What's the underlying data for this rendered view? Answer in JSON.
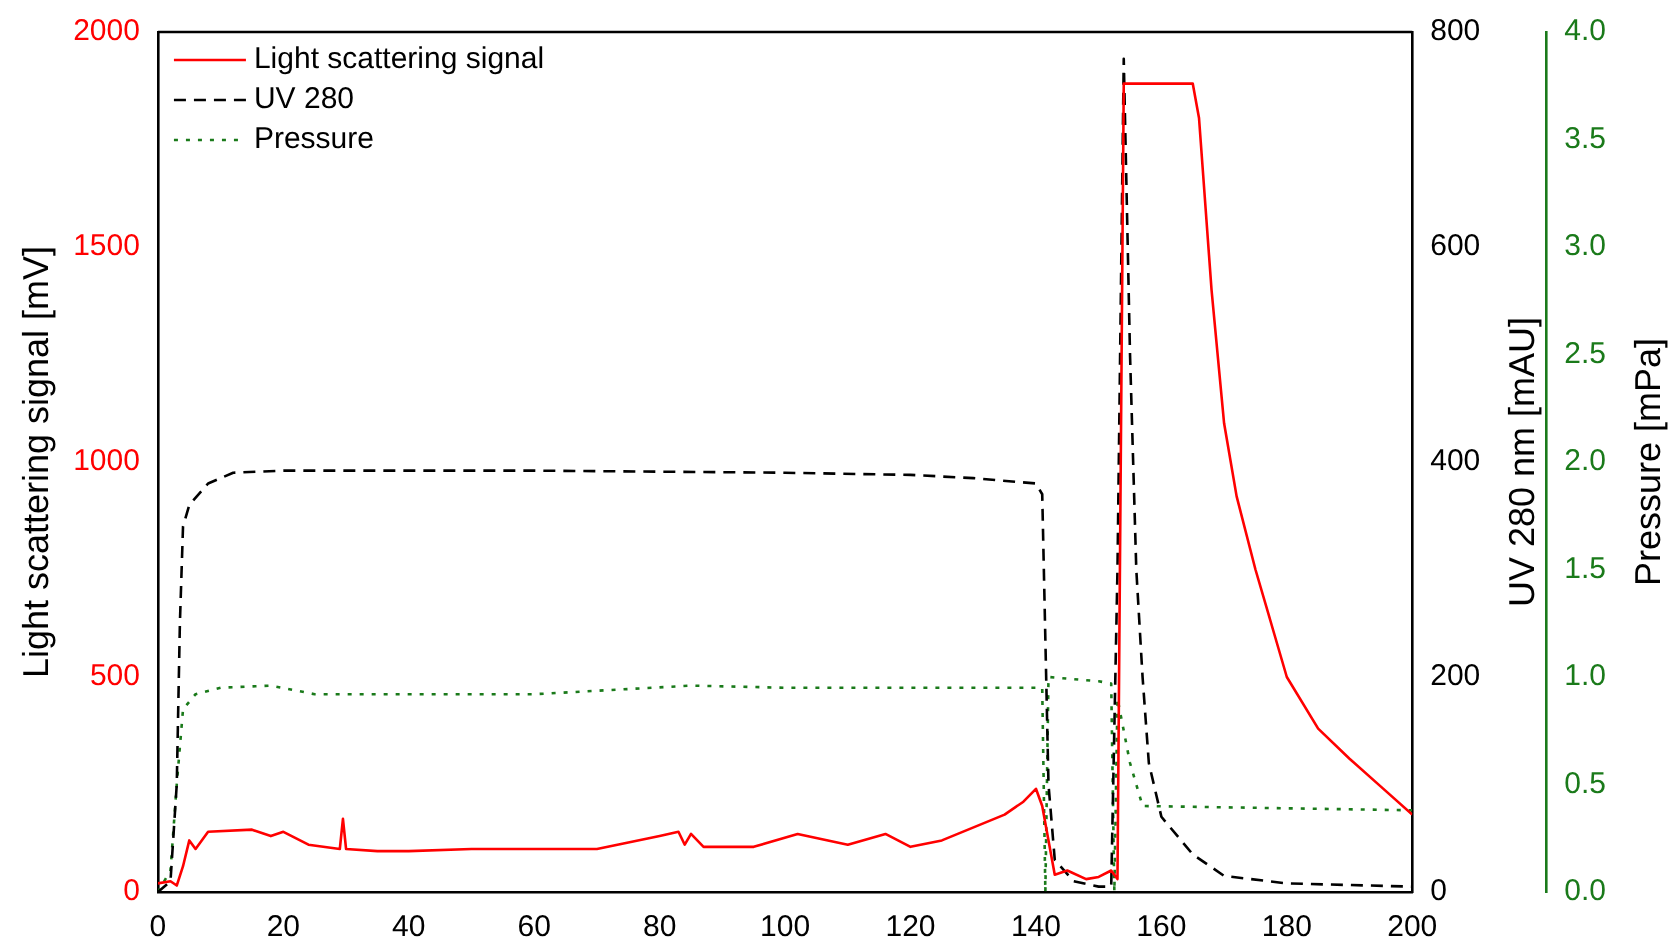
{
  "chart_data": {
    "type": "line",
    "ylabel": "Light scattering signal [mV]",
    "y2label": "UV 280 nm [mAU]",
    "y3label": "Pressure [mPa]",
    "xlim": [
      0,
      200
    ],
    "xticks": [
      0,
      20,
      40,
      60,
      80,
      100,
      120,
      140,
      160,
      180,
      200
    ],
    "ylim": [
      0,
      2000
    ],
    "yticks": [
      0,
      500,
      1000,
      1500,
      2000
    ],
    "y2lim": [
      0,
      800
    ],
    "y2ticks": [
      0,
      200,
      400,
      600,
      800
    ],
    "y3lim": [
      0,
      4
    ],
    "y3ticks": [
      {
        "value": 0,
        "label": "0.0"
      },
      0.5,
      {
        "value": 1,
        "label": "1.0"
      },
      1.5,
      {
        "value": 2,
        "label": "2.0"
      },
      2.5,
      {
        "value": 3,
        "label": "3.0"
      },
      3.5,
      {
        "value": 4,
        "label": "4.0"
      }
    ],
    "grid": false,
    "legend": "top left",
    "marker": "none",
    "series": [
      {
        "name": "Light scattering signal",
        "color": "#ff0000",
        "line_style": "solid",
        "x": [
          0,
          2,
          3,
          4,
          5,
          6,
          8,
          15,
          18,
          20,
          24,
          29,
          29.5,
          30,
          35,
          40,
          50,
          60,
          70,
          75,
          80,
          83,
          84,
          85,
          87,
          95,
          102,
          110,
          116,
          120,
          125,
          135,
          138,
          140,
          141,
          142,
          143,
          145,
          148,
          150,
          152,
          153,
          154,
          165,
          166,
          168,
          170,
          172,
          175,
          178,
          180,
          185,
          190,
          195,
          200
        ],
        "values": [
          20,
          25,
          15,
          60,
          120,
          100,
          140,
          145,
          130,
          140,
          110,
          100,
          170,
          100,
          95,
          95,
          100,
          100,
          100,
          115,
          130,
          140,
          110,
          135,
          105,
          105,
          135,
          110,
          135,
          105,
          120,
          180,
          210,
          240,
          200,
          120,
          40,
          50,
          30,
          35,
          50,
          30,
          1880,
          1880,
          1800,
          1400,
          1090,
          920,
          750,
          600,
          500,
          380,
          310,
          245,
          180
        ]
      },
      {
        "name": "UV 280",
        "color": "#000000",
        "line_style": "dashed",
        "axis": "y2",
        "x": [
          0,
          2,
          3,
          3.5,
          4,
          5,
          8,
          12,
          20,
          60,
          100,
          120,
          130,
          140,
          141,
          142,
          143,
          146,
          150,
          152,
          153,
          154,
          155,
          156,
          157,
          158,
          160,
          165,
          170,
          180,
          200
        ],
        "values": [
          0,
          10,
          100,
          250,
          340,
          360,
          380,
          390,
          392,
          392,
          390,
          388,
          385,
          380,
          370,
          100,
          30,
          10,
          5,
          5,
          300,
          775,
          500,
          300,
          200,
          120,
          70,
          35,
          15,
          8,
          5
        ]
      },
      {
        "name": "Pressure",
        "color": "#1a7a1a",
        "line_style": "dotted",
        "axis": "y3",
        "x": [
          0,
          2,
          3,
          4,
          6,
          10,
          18,
          25,
          60,
          85,
          100,
          140,
          141,
          141.5,
          142,
          150,
          152,
          152.5,
          153,
          155,
          157,
          200
        ],
        "values": [
          0,
          0.1,
          0.5,
          0.85,
          0.92,
          0.95,
          0.96,
          0.92,
          0.92,
          0.96,
          0.95,
          0.95,
          0.95,
          0,
          1.0,
          0.98,
          0.97,
          0,
          0.9,
          0.6,
          0.4,
          0.38
        ]
      }
    ]
  }
}
